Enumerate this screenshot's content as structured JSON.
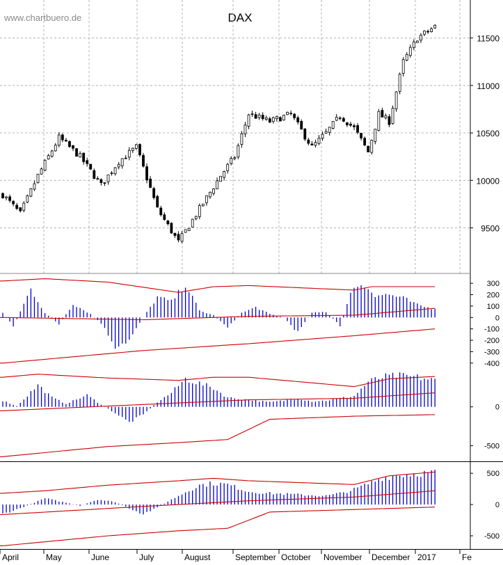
{
  "watermark": "www.chartbuero.de",
  "colors": {
    "candle": "#000000",
    "bars": "#0000cc",
    "bands": "#cc0000",
    "grid": "#b0b0b0",
    "separator": "#000000"
  },
  "chart_data": [
    {
      "type": "candlestick",
      "title": "DAX",
      "y_ticks": [
        9500,
        10000,
        10500,
        11000,
        11500
      ],
      "ylim": [
        9020,
        11900
      ],
      "grid": true,
      "x_labels": [
        "April",
        "May",
        "June",
        "July",
        "August",
        "September",
        "October",
        "November",
        "December",
        "2017",
        "Fe"
      ],
      "close_profile": {
        "x": [
          0,
          5,
          10,
          16,
          22,
          28,
          33,
          38,
          44,
          50,
          56,
          62,
          66,
          70,
          76,
          82,
          88,
          92,
          96,
          100,
          104,
          107,
          110,
          114,
          118,
          123
        ],
        "y": [
          9850,
          9650,
          10050,
          10450,
          10250,
          9950,
          10200,
          10350,
          9700,
          9350,
          9700,
          10050,
          10250,
          10700,
          10620,
          10700,
          10350,
          10500,
          10680,
          10550,
          10300,
          10700,
          10620,
          11250,
          11500,
          11620
        ]
      }
    },
    {
      "type": "bar",
      "name": "oscillator-1",
      "y_ticks": [
        300,
        200,
        100,
        0,
        -100,
        -200,
        -300,
        -400
      ],
      "ylim": [
        -450,
        380
      ],
      "grid": false,
      "profile": {
        "x": [
          0,
          3,
          8,
          12,
          16,
          20,
          25,
          28,
          32,
          36,
          40,
          44,
          48,
          52,
          56,
          60,
          64,
          68,
          72,
          76,
          80,
          84,
          88,
          92,
          96,
          100,
          104,
          106,
          110,
          114,
          118,
          122,
          123
        ],
        "y": [
          40,
          -80,
          250,
          40,
          -60,
          120,
          30,
          -50,
          -250,
          -200,
          0,
          180,
          140,
          290,
          60,
          20,
          -90,
          40,
          90,
          30,
          0,
          -130,
          40,
          50,
          -70,
          290,
          260,
          200,
          200,
          170,
          110,
          80,
          80
        ]
      },
      "upper_band": {
        "x": [
          0,
          12,
          30,
          50,
          60,
          70,
          100,
          105,
          123
        ],
        "y": [
          320,
          340,
          310,
          220,
          270,
          280,
          240,
          270,
          270
        ]
      },
      "mid_band": {
        "x": [
          0,
          40,
          70,
          100,
          123
        ],
        "y": [
          0,
          -20,
          10,
          20,
          80
        ]
      },
      "lower_band": {
        "x": [
          0,
          40,
          70,
          100,
          123
        ],
        "y": [
          -400,
          -290,
          -230,
          -160,
          -100
        ]
      }
    },
    {
      "type": "bar",
      "name": "oscillator-2",
      "y_ticks": [
        0,
        -500
      ],
      "ylim": [
        -700,
        480
      ],
      "grid": false,
      "profile": {
        "x": [
          0,
          4,
          10,
          14,
          18,
          24,
          28,
          32,
          36,
          40,
          44,
          48,
          52,
          56,
          60,
          64,
          70,
          76,
          80,
          84,
          88,
          92,
          96,
          100,
          104,
          108,
          112,
          118,
          123
        ],
        "y": [
          80,
          10,
          280,
          120,
          40,
          150,
          30,
          -80,
          -200,
          -100,
          60,
          180,
          360,
          300,
          240,
          120,
          90,
          60,
          80,
          110,
          70,
          80,
          110,
          140,
          320,
          380,
          400,
          380,
          340
        ]
      },
      "upper_band": {
        "x": [
          0,
          10,
          30,
          50,
          60,
          70,
          100,
          110,
          123
        ],
        "y": [
          380,
          420,
          370,
          340,
          380,
          380,
          260,
          360,
          390
        ]
      },
      "mid_band": {
        "x": [
          0,
          40,
          70,
          100,
          123
        ],
        "y": [
          -50,
          30,
          90,
          110,
          180
        ]
      },
      "lower_band": {
        "x": [
          0,
          30,
          50,
          64,
          76,
          100,
          123
        ],
        "y": [
          -640,
          -510,
          -460,
          -420,
          -160,
          -120,
          -100
        ]
      }
    },
    {
      "type": "bar",
      "name": "oscillator-3",
      "y_ticks": [
        500,
        0,
        -500
      ],
      "ylim": [
        -700,
        680
      ],
      "grid": false,
      "profile": {
        "x": [
          0,
          5,
          12,
          18,
          22,
          27,
          32,
          36,
          40,
          44,
          48,
          52,
          56,
          60,
          64,
          70,
          76,
          80,
          84,
          88,
          92,
          96,
          100,
          104,
          108,
          112,
          118,
          123
        ],
        "y": [
          -150,
          -60,
          100,
          30,
          -20,
          80,
          40,
          -60,
          -150,
          -50,
          80,
          200,
          310,
          340,
          320,
          210,
          180,
          170,
          160,
          150,
          140,
          180,
          240,
          330,
          430,
          470,
          500,
          510
        ]
      },
      "upper_band": {
        "x": [
          0,
          12,
          30,
          50,
          60,
          70,
          100,
          110,
          123
        ],
        "y": [
          180,
          220,
          310,
          380,
          420,
          380,
          320,
          460,
          520
        ]
      },
      "mid_band": {
        "x": [
          0,
          40,
          70,
          100,
          123
        ],
        "y": [
          -160,
          -30,
          60,
          120,
          220
        ]
      },
      "lower_band": {
        "x": [
          0,
          30,
          50,
          64,
          76,
          100,
          123
        ],
        "y": [
          -660,
          -500,
          -420,
          -380,
          -120,
          -80,
          -40
        ]
      }
    }
  ]
}
